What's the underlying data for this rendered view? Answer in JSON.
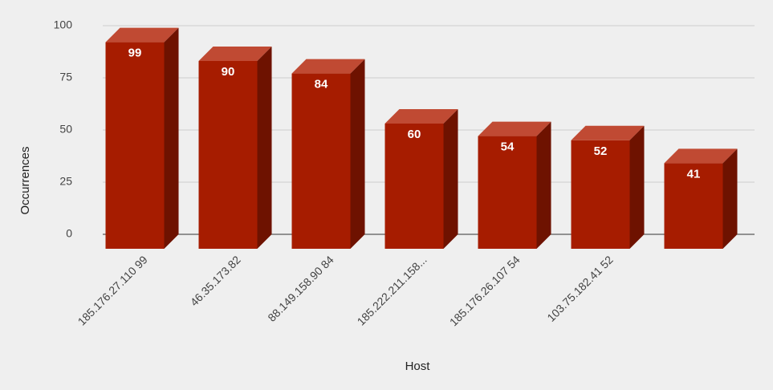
{
  "chart_data": {
    "type": "bar3d",
    "categories": [
      "185.176.27.110 99",
      "46.35.173.82",
      "88.149.158.90 84",
      "185.222.211.158...",
      "185.176.26.107 54",
      "103.75.182.41 52",
      null
    ],
    "values": [
      99,
      90,
      84,
      60,
      54,
      52,
      41
    ],
    "color": "#a61c00",
    "ylim": [
      0,
      100
    ],
    "yticks": [
      0,
      25,
      50,
      75,
      100
    ],
    "grid": true,
    "xlabel": "Host",
    "ylabel": "Occurrences"
  }
}
